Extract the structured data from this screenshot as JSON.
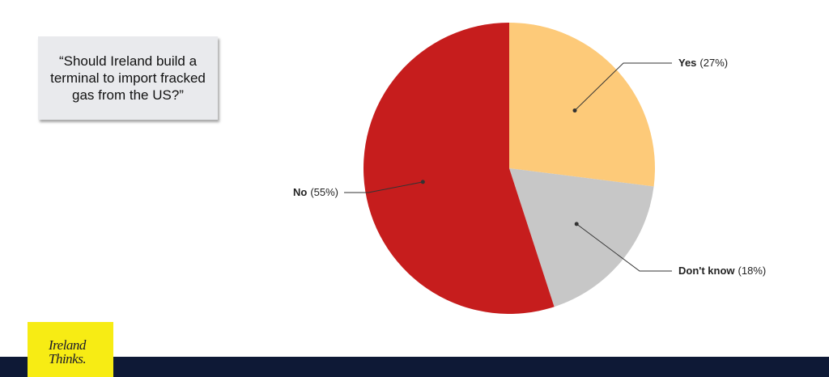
{
  "chart_data": {
    "type": "pie",
    "title": "“Should Ireland build a terminal to import fracked gas from the US?”",
    "categories": [
      "Yes",
      "Don't know",
      "No"
    ],
    "values": [
      27,
      18,
      55
    ],
    "value_labels": [
      "(27%)",
      "(18%)",
      "(55%)"
    ],
    "colors": [
      "#fdca79",
      "#c7c7c7",
      "#c61d1d"
    ]
  },
  "brand": [
    "Ireland",
    "Thinks."
  ]
}
